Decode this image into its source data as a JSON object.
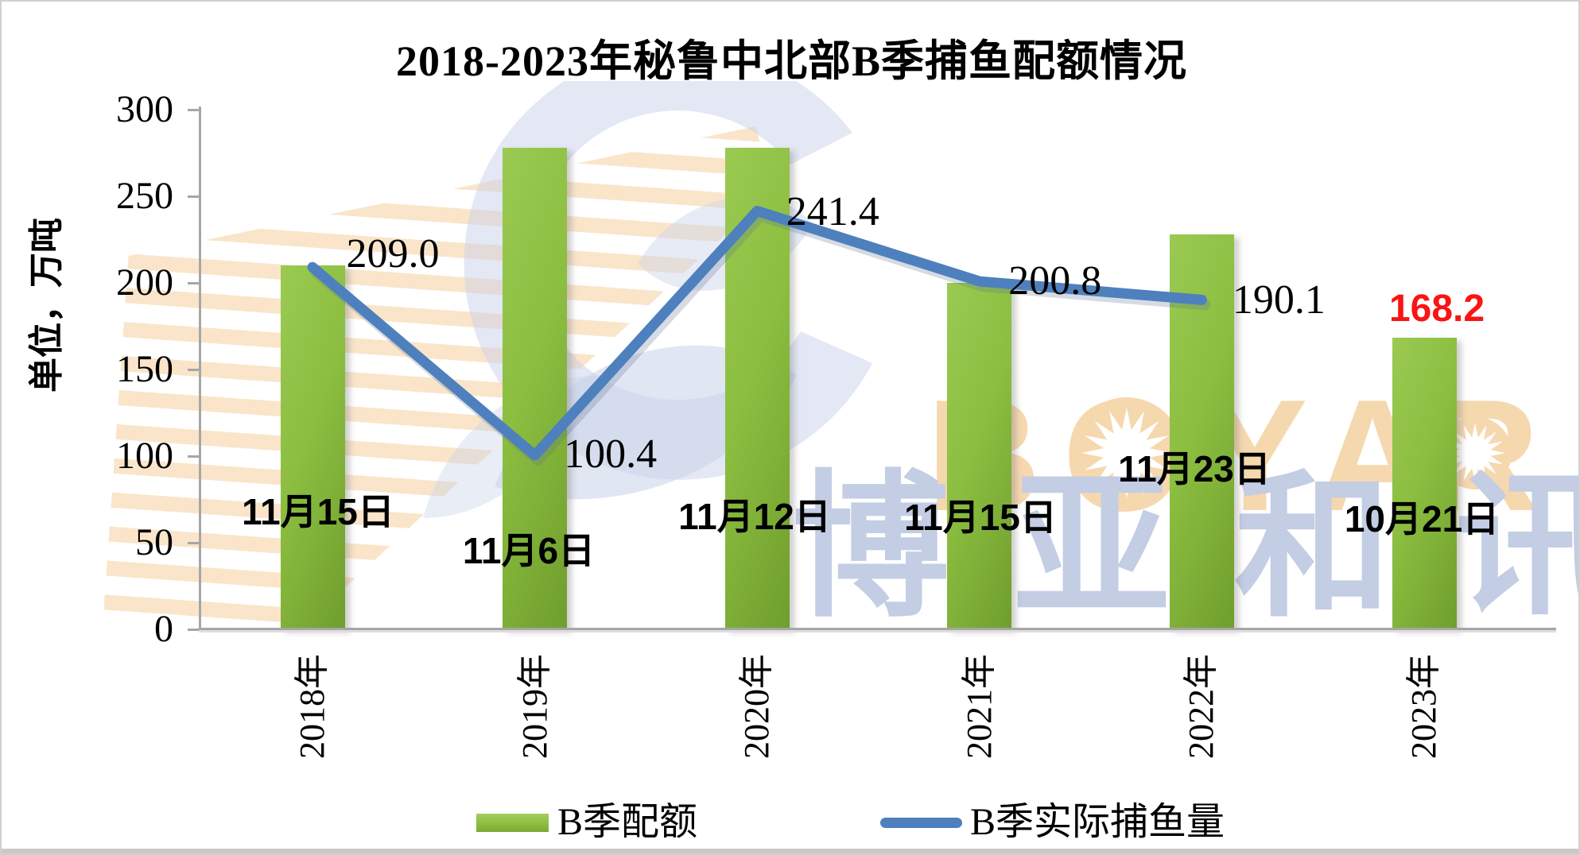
{
  "title": "2018-2023年秘鲁中北部B季捕鱼配额情况",
  "y_axis": {
    "title": "单位，万吨",
    "ticks": [
      "300",
      "250",
      "200",
      "150",
      "100",
      "50",
      "0"
    ],
    "tick_values": [
      300,
      250,
      200,
      150,
      100,
      50,
      0
    ]
  },
  "chart_data": {
    "type": "bar+line",
    "categories": [
      "2018年",
      "2019年",
      "2020年",
      "2021年",
      "2022年",
      "2023年"
    ],
    "series": [
      {
        "name": "B季配额",
        "type": "bar",
        "color": "#8cbe41",
        "values": [
          210,
          278,
          278,
          200,
          228,
          168.2
        ]
      },
      {
        "name": "B季实际捕鱼量",
        "type": "line",
        "color": "#4e80bd",
        "values": [
          209.0,
          100.4,
          241.4,
          200.8,
          190.1,
          null
        ]
      }
    ],
    "line_point_labels": [
      "209.0",
      "100.4",
      "241.4",
      "200.8",
      "190.1"
    ],
    "quota_label_2023": {
      "text": "168.2",
      "color": "#fa1414"
    },
    "season_start_dates": [
      "11月15日",
      "11月6日",
      "11月12日",
      "11月15日",
      "11月23日",
      "10月21日"
    ],
    "ylim": [
      0,
      300
    ],
    "grid": "off",
    "legend_position": "bottom"
  },
  "legend": {
    "bar_label": "B季配额",
    "line_label": "B季实际捕鱼量"
  },
  "watermark": {
    "brand_latin": "BOYAR",
    "brand_cjk": "博亚和讯"
  },
  "colors": {
    "bar_green": "#8cbe41",
    "bar_green_dark": "#6f9e2c",
    "line_blue": "#4e80bd",
    "axis_gray": "#a6a6a6",
    "label_red": "#fa1414",
    "watermark_peach": "#f6d8ae",
    "watermark_blue_gray": "#c3cde4"
  }
}
